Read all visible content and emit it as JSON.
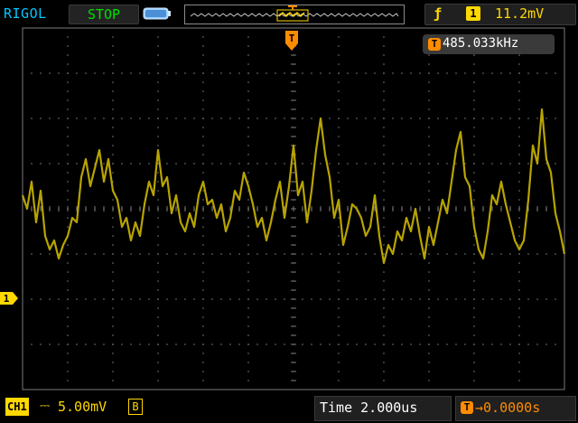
{
  "header": {
    "brand": "RIGOL",
    "run_state": "STOP",
    "trigger_edge_symbol": "ƒ",
    "trigger_channel": "1",
    "trigger_level": "11.2mV"
  },
  "measurement": {
    "freq_icon": "T",
    "frequency": "485.033kHz"
  },
  "trigger_marker": {
    "label": "T"
  },
  "channel": {
    "badge": "CH1",
    "coupling": "⎓",
    "scale": "5.00mV",
    "bw_limit": "B",
    "level_marker": "1"
  },
  "timebase": {
    "label": "Time",
    "value": "2.000us",
    "offset_icon": "T",
    "offset": "→0.0000s"
  },
  "colors": {
    "trace": "#b8a400",
    "grid": "#7a7a7a",
    "trigger": "#ff8c00",
    "channel": "#ffd800",
    "brand": "#00c8ff",
    "stop": "#00e000"
  },
  "icons": {
    "battery": "battery-icon",
    "memory": "memory-depth-icon",
    "trigger_pos": "trigger-position-icon"
  },
  "waveform": {
    "x_divisions": 12,
    "y_divisions": 8,
    "units": "divisions from centre (1 div = 5.00mV, 1 div = 2.000us)",
    "samples": [
      [
        -6.0,
        0.3
      ],
      [
        -5.9,
        0.0
      ],
      [
        -5.8,
        0.6
      ],
      [
        -5.7,
        -0.3
      ],
      [
        -5.6,
        0.4
      ],
      [
        -5.5,
        -0.6
      ],
      [
        -5.4,
        -0.9
      ],
      [
        -5.3,
        -0.7
      ],
      [
        -5.2,
        -1.1
      ],
      [
        -5.1,
        -0.8
      ],
      [
        -5.0,
        -0.6
      ],
      [
        -4.9,
        -0.2
      ],
      [
        -4.8,
        -0.3
      ],
      [
        -4.7,
        0.7
      ],
      [
        -4.6,
        1.1
      ],
      [
        -4.5,
        0.5
      ],
      [
        -4.4,
        0.9
      ],
      [
        -4.3,
        1.3
      ],
      [
        -4.2,
        0.6
      ],
      [
        -4.1,
        1.1
      ],
      [
        -4.0,
        0.4
      ],
      [
        -3.9,
        0.2
      ],
      [
        -3.8,
        -0.4
      ],
      [
        -3.7,
        -0.2
      ],
      [
        -3.6,
        -0.7
      ],
      [
        -3.5,
        -0.3
      ],
      [
        -3.4,
        -0.6
      ],
      [
        -3.3,
        0.1
      ],
      [
        -3.2,
        0.6
      ],
      [
        -3.1,
        0.3
      ],
      [
        -3.0,
        1.3
      ],
      [
        -2.9,
        0.5
      ],
      [
        -2.8,
        0.7
      ],
      [
        -2.7,
        -0.1
      ],
      [
        -2.6,
        0.3
      ],
      [
        -2.5,
        -0.3
      ],
      [
        -2.4,
        -0.5
      ],
      [
        -2.3,
        -0.1
      ],
      [
        -2.2,
        -0.4
      ],
      [
        -2.1,
        0.3
      ],
      [
        -2.0,
        0.6
      ],
      [
        -1.9,
        0.1
      ],
      [
        -1.8,
        0.2
      ],
      [
        -1.7,
        -0.2
      ],
      [
        -1.6,
        0.1
      ],
      [
        -1.5,
        -0.5
      ],
      [
        -1.4,
        -0.2
      ],
      [
        -1.3,
        0.4
      ],
      [
        -1.2,
        0.2
      ],
      [
        -1.1,
        0.8
      ],
      [
        -1.0,
        0.5
      ],
      [
        -0.9,
        0.1
      ],
      [
        -0.8,
        -0.4
      ],
      [
        -0.7,
        -0.2
      ],
      [
        -0.6,
        -0.7
      ],
      [
        -0.5,
        -0.3
      ],
      [
        -0.4,
        0.2
      ],
      [
        -0.3,
        0.6
      ],
      [
        -0.2,
        -0.2
      ],
      [
        -0.1,
        0.5
      ],
      [
        0.0,
        1.4
      ],
      [
        0.1,
        0.3
      ],
      [
        0.2,
        0.6
      ],
      [
        0.3,
        -0.3
      ],
      [
        0.4,
        0.4
      ],
      [
        0.5,
        1.3
      ],
      [
        0.6,
        2.0
      ],
      [
        0.7,
        1.2
      ],
      [
        0.8,
        0.7
      ],
      [
        0.9,
        -0.2
      ],
      [
        1.0,
        0.2
      ],
      [
        1.1,
        -0.8
      ],
      [
        1.2,
        -0.4
      ],
      [
        1.3,
        0.1
      ],
      [
        1.4,
        0.0
      ],
      [
        1.5,
        -0.2
      ],
      [
        1.6,
        -0.6
      ],
      [
        1.7,
        -0.4
      ],
      [
        1.8,
        0.3
      ],
      [
        1.9,
        -0.6
      ],
      [
        2.0,
        -1.2
      ],
      [
        2.1,
        -0.8
      ],
      [
        2.2,
        -1.0
      ],
      [
        2.3,
        -0.5
      ],
      [
        2.4,
        -0.7
      ],
      [
        2.5,
        -0.2
      ],
      [
        2.6,
        -0.5
      ],
      [
        2.7,
        0.0
      ],
      [
        2.8,
        -0.6
      ],
      [
        2.9,
        -1.1
      ],
      [
        3.0,
        -0.4
      ],
      [
        3.1,
        -0.8
      ],
      [
        3.2,
        -0.3
      ],
      [
        3.3,
        0.2
      ],
      [
        3.4,
        -0.1
      ],
      [
        3.5,
        0.6
      ],
      [
        3.6,
        1.3
      ],
      [
        3.7,
        1.7
      ],
      [
        3.8,
        0.7
      ],
      [
        3.9,
        0.5
      ],
      [
        4.0,
        -0.4
      ],
      [
        4.1,
        -0.9
      ],
      [
        4.2,
        -1.1
      ],
      [
        4.3,
        -0.5
      ],
      [
        4.4,
        0.3
      ],
      [
        4.5,
        0.1
      ],
      [
        4.6,
        0.6
      ],
      [
        4.7,
        0.1
      ],
      [
        4.8,
        -0.3
      ],
      [
        4.9,
        -0.7
      ],
      [
        5.0,
        -0.9
      ],
      [
        5.1,
        -0.7
      ],
      [
        5.2,
        0.2
      ],
      [
        5.3,
        1.4
      ],
      [
        5.4,
        1.0
      ],
      [
        5.5,
        2.2
      ],
      [
        5.6,
        1.1
      ],
      [
        5.7,
        0.8
      ],
      [
        5.8,
        -0.1
      ],
      [
        5.9,
        -0.5
      ],
      [
        6.0,
        -1.0
      ]
    ]
  }
}
